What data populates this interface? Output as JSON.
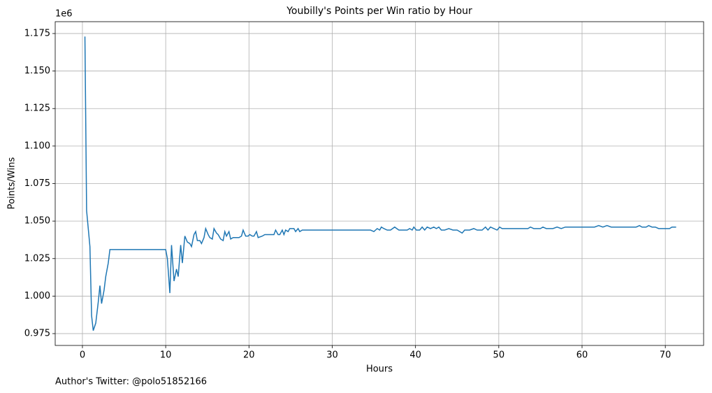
{
  "chart_data": {
    "type": "line",
    "title": "Youbilly's Points per Win ratio by Hour",
    "x_label": "Hours",
    "y_label": "Points/Wins",
    "y_offset_label": "1e6",
    "footnote": "Author's Twitter: @polo51852166",
    "x": [
      0.3,
      0.5,
      0.9,
      1.1,
      1.3,
      1.6,
      1.9,
      2.1,
      2.3,
      2.6,
      2.8,
      3.1,
      3.3,
      3.5,
      10.0,
      10.2,
      10.5,
      10.7,
      11.0,
      11.3,
      11.5,
      11.8,
      12.0,
      12.3,
      12.6,
      12.9,
      13.1,
      13.4,
      13.6,
      13.8,
      14.1,
      14.3,
      14.6,
      14.8,
      15.1,
      15.3,
      15.6,
      15.8,
      16.1,
      16.3,
      16.6,
      16.9,
      17.1,
      17.3,
      17.6,
      17.8,
      18.1,
      18.8,
      19.1,
      19.3,
      19.6,
      19.9,
      20.1,
      20.4,
      20.6,
      20.9,
      21.1,
      21.6,
      21.9,
      23.0,
      23.2,
      23.5,
      23.7,
      24.0,
      24.2,
      24.4,
      24.7,
      24.9,
      25.2,
      25.4,
      25.6,
      25.9,
      26.1,
      26.4,
      34.6,
      35.0,
      35.4,
      35.7,
      35.9,
      36.2,
      36.6,
      37.0,
      37.5,
      38.0,
      38.5,
      39.0,
      39.3,
      39.6,
      39.8,
      40.1,
      40.5,
      40.8,
      41.1,
      41.4,
      41.8,
      42.2,
      42.5,
      42.8,
      43.1,
      43.5,
      44.0,
      44.5,
      45.0,
      45.3,
      45.6,
      45.9,
      46.5,
      47.0,
      47.4,
      48.0,
      48.4,
      48.7,
      49.0,
      49.4,
      49.8,
      50.1,
      50.4,
      51.0,
      53.5,
      53.8,
      54.2,
      55.0,
      55.3,
      55.7,
      56.5,
      57.0,
      57.5,
      58.0,
      58.5,
      59.0,
      60.0,
      60.5,
      61.0,
      61.5,
      62.0,
      62.5,
      63.0,
      63.5,
      64.0,
      66.5,
      66.9,
      67.2,
      67.7,
      68.0,
      68.4,
      68.8,
      69.2,
      69.6,
      70.0,
      70.5,
      70.8,
      71.0,
      71.3
    ],
    "series": [
      {
        "color": "#1f77b4",
        "values": [
          1.173,
          1.057,
          1.033,
          0.987,
          0.977,
          0.982,
          0.996,
          1.007,
          0.995,
          1.004,
          1.013,
          1.022,
          1.031,
          1.031,
          1.031,
          1.025,
          1.002,
          1.034,
          1.01,
          1.018,
          1.013,
          1.034,
          1.022,
          1.04,
          1.036,
          1.035,
          1.033,
          1.041,
          1.043,
          1.037,
          1.037,
          1.035,
          1.039,
          1.045,
          1.041,
          1.039,
          1.038,
          1.045,
          1.042,
          1.041,
          1.038,
          1.037,
          1.043,
          1.04,
          1.043,
          1.038,
          1.039,
          1.039,
          1.04,
          1.044,
          1.04,
          1.04,
          1.041,
          1.04,
          1.04,
          1.043,
          1.039,
          1.04,
          1.041,
          1.041,
          1.044,
          1.041,
          1.041,
          1.044,
          1.041,
          1.044,
          1.043,
          1.045,
          1.045,
          1.045,
          1.043,
          1.045,
          1.043,
          1.044,
          1.044,
          1.043,
          1.045,
          1.044,
          1.046,
          1.045,
          1.044,
          1.044,
          1.046,
          1.044,
          1.044,
          1.044,
          1.045,
          1.044,
          1.046,
          1.044,
          1.044,
          1.046,
          1.044,
          1.046,
          1.045,
          1.046,
          1.045,
          1.046,
          1.044,
          1.044,
          1.045,
          1.044,
          1.044,
          1.043,
          1.042,
          1.044,
          1.044,
          1.045,
          1.044,
          1.044,
          1.046,
          1.044,
          1.046,
          1.045,
          1.044,
          1.046,
          1.045,
          1.045,
          1.045,
          1.046,
          1.045,
          1.045,
          1.046,
          1.045,
          1.045,
          1.046,
          1.045,
          1.046,
          1.046,
          1.046,
          1.046,
          1.046,
          1.046,
          1.046,
          1.047,
          1.046,
          1.047,
          1.046,
          1.046,
          1.046,
          1.047,
          1.046,
          1.046,
          1.047,
          1.046,
          1.046,
          1.045,
          1.045,
          1.045,
          1.045,
          1.046,
          1.046,
          1.046
        ]
      }
    ],
    "xlim": [
      -3.27,
      74.6
    ],
    "xticks": [
      0,
      10,
      20,
      30,
      40,
      50,
      60,
      70
    ],
    "ylim": [
      0.9671,
      1.1829
    ],
    "yticks": [
      {
        "value": 0.975,
        "label": "0.975"
      },
      {
        "value": 1.0,
        "label": "1.000"
      },
      {
        "value": 1.025,
        "label": "1.025"
      },
      {
        "value": 1.05,
        "label": "1.050"
      },
      {
        "value": 1.075,
        "label": "1.075"
      },
      {
        "value": 1.1,
        "label": "1.100"
      },
      {
        "value": 1.125,
        "label": "1.125"
      },
      {
        "value": 1.15,
        "label": "1.150"
      },
      {
        "value": 1.175,
        "label": "1.175"
      }
    ],
    "grid": true
  }
}
